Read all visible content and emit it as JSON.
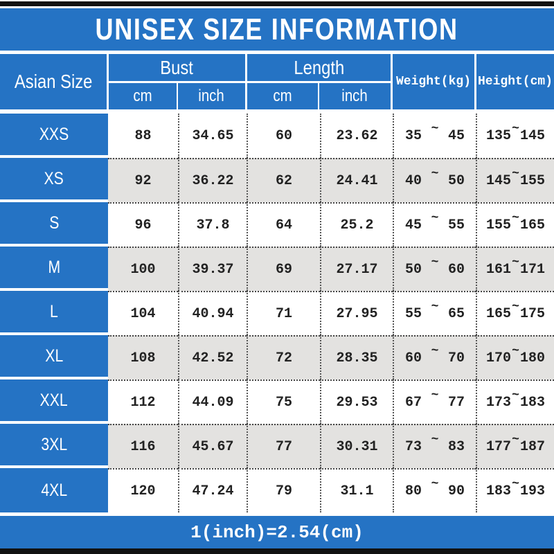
{
  "title": "UNISEX SIZE INFORMATION",
  "footer_note": "1(inch)=2.54(cm)",
  "tilde": "~",
  "columns": {
    "asian_size": "Asian Size",
    "bust": "Bust",
    "length": "Length",
    "weight": "Weight(kg)",
    "height": "Height(cm)",
    "unit_cm": "cm",
    "unit_inch": "inch"
  },
  "colors": {
    "accent_blue": "#2573c4",
    "alt_row_gray": "#e3e2e0",
    "frame_black": "#111111",
    "text_dark": "#222222"
  },
  "rows": [
    {
      "size": "XXS",
      "bust_cm": "88",
      "bust_inch": "34.65",
      "length_cm": "60",
      "length_inch": "23.62",
      "weight_min": "35",
      "weight_max": "45",
      "height_min": "135",
      "height_max": "145"
    },
    {
      "size": "XS",
      "bust_cm": "92",
      "bust_inch": "36.22",
      "length_cm": "62",
      "length_inch": "24.41",
      "weight_min": "40",
      "weight_max": "50",
      "height_min": "145",
      "height_max": "155"
    },
    {
      "size": "S",
      "bust_cm": "96",
      "bust_inch": "37.8",
      "length_cm": "64",
      "length_inch": "25.2",
      "weight_min": "45",
      "weight_max": "55",
      "height_min": "155",
      "height_max": "165"
    },
    {
      "size": "M",
      "bust_cm": "100",
      "bust_inch": "39.37",
      "length_cm": "69",
      "length_inch": "27.17",
      "weight_min": "50",
      "weight_max": "60",
      "height_min": "161",
      "height_max": "171"
    },
    {
      "size": "L",
      "bust_cm": "104",
      "bust_inch": "40.94",
      "length_cm": "71",
      "length_inch": "27.95",
      "weight_min": "55",
      "weight_max": "65",
      "height_min": "165",
      "height_max": "175"
    },
    {
      "size": "XL",
      "bust_cm": "108",
      "bust_inch": "42.52",
      "length_cm": "72",
      "length_inch": "28.35",
      "weight_min": "60",
      "weight_max": "70",
      "height_min": "170",
      "height_max": "180"
    },
    {
      "size": "XXL",
      "bust_cm": "112",
      "bust_inch": "44.09",
      "length_cm": "75",
      "length_inch": "29.53",
      "weight_min": "67",
      "weight_max": "77",
      "height_min": "173",
      "height_max": "183"
    },
    {
      "size": "3XL",
      "bust_cm": "116",
      "bust_inch": "45.67",
      "length_cm": "77",
      "length_inch": "30.31",
      "weight_min": "73",
      "weight_max": "83",
      "height_min": "177",
      "height_max": "187"
    },
    {
      "size": "4XL",
      "bust_cm": "120",
      "bust_inch": "47.24",
      "length_cm": "79",
      "length_inch": "31.1",
      "weight_min": "80",
      "weight_max": "90",
      "height_min": "183",
      "height_max": "193"
    }
  ]
}
